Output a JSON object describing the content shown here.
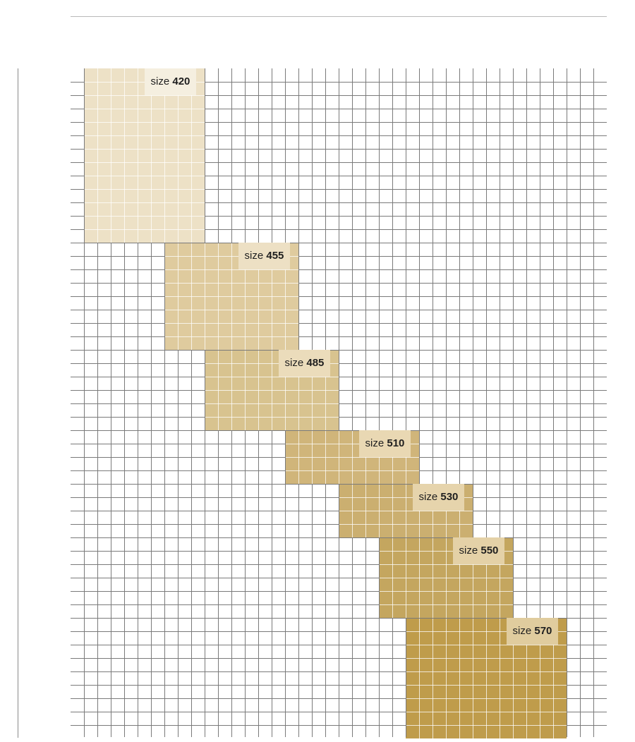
{
  "colors": {
    "grid_line": "#7a7a7a",
    "inner_line": "#ffffff",
    "top_rule": "#b9b9b9",
    "left_rule": "#8a8a8a"
  },
  "sizes": [
    {
      "word": "size",
      "value": "420",
      "fill": "#ede1c6",
      "label_bg": "#f5efe0"
    },
    {
      "word": "size",
      "value": "455",
      "fill": "#dfcb9e",
      "label_bg": "#ede0c4"
    },
    {
      "word": "size",
      "value": "485",
      "fill": "#d8c38f",
      "label_bg": "#ebdcbb"
    },
    {
      "word": "size",
      "value": "510",
      "fill": "#d0b57a",
      "label_bg": "#e9d8b3"
    },
    {
      "word": "size",
      "value": "530",
      "fill": "#cbaf70",
      "label_bg": "#e6d4ac"
    },
    {
      "word": "size",
      "value": "550",
      "fill": "#c4a65f",
      "label_bg": "#e4d1a7"
    },
    {
      "word": "size",
      "value": "570",
      "fill": "#bf9c4b",
      "label_bg": "#e0cc9e"
    }
  ]
}
